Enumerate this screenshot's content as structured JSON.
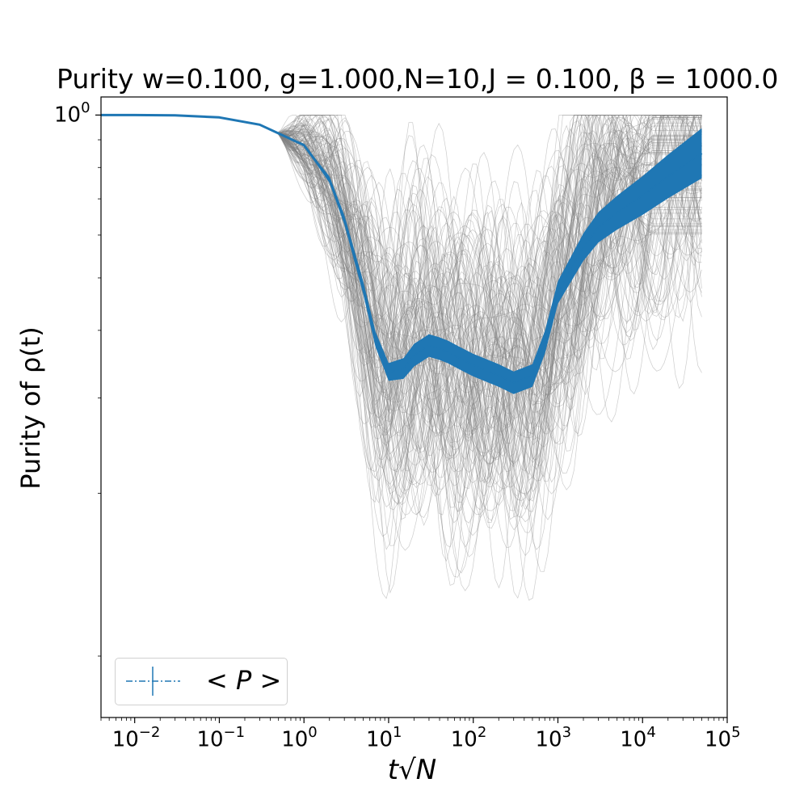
{
  "chart_data": {
    "type": "line",
    "title": "Purity w=0.100, g=1.000,N=10,J = 0.100, β = 1000.0",
    "xlabel": "t√N",
    "ylabel": "Purity of ρ(t)",
    "xscale": "log",
    "yscale": "log",
    "xlim": [
      0.004,
      100000
    ],
    "ylim": [
      0.077,
      1.08
    ],
    "x_tick_labels": [
      "10−2",
      "10−1",
      "100",
      "101",
      "102",
      "103",
      "104",
      "105"
    ],
    "x_tick_values": [
      0.01,
      0.1,
      1,
      10,
      100,
      1000,
      10000,
      100000
    ],
    "y_tick_labels": [
      "100"
    ],
    "y_tick_values": [
      1.0
    ],
    "legend": {
      "placement": "lower-left",
      "entries": [
        "< P >"
      ]
    },
    "colors": {
      "mean": "#1f77b4",
      "samples": "#808080"
    },
    "series": [
      {
        "name": "< P >",
        "x": [
          0.004,
          0.01,
          0.03,
          0.1,
          0.3,
          1,
          2,
          3,
          5,
          7,
          10,
          15,
          20,
          30,
          40,
          50,
          70,
          100,
          200,
          300,
          500,
          700,
          1000,
          2000,
          3000,
          5000,
          10000,
          20000,
          50000
        ],
        "y": [
          1.0,
          1.0,
          0.999,
          0.99,
          0.96,
          0.88,
          0.76,
          0.64,
          0.48,
          0.385,
          0.335,
          0.34,
          0.36,
          0.375,
          0.37,
          0.365,
          0.355,
          0.345,
          0.33,
          0.32,
          0.33,
          0.38,
          0.47,
          0.57,
          0.62,
          0.66,
          0.71,
          0.77,
          0.85
        ]
      }
    ]
  }
}
